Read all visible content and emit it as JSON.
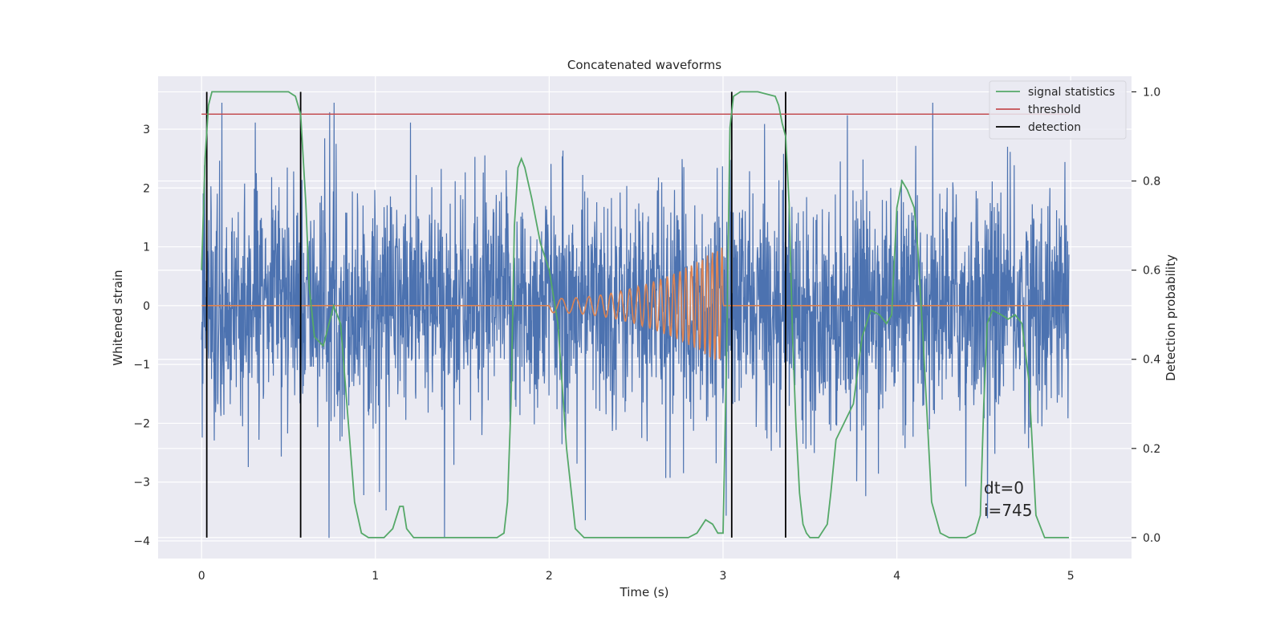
{
  "chart_data": {
    "type": "line",
    "title": "Concatenated waveforms",
    "xlabel": "Time (s)",
    "ylabel": "Whitened strain",
    "y2label": "Detection probability",
    "xlim": [
      -0.25,
      5.35
    ],
    "ylim": [
      -4.3,
      3.9
    ],
    "y2lim": [
      -0.047,
      1.035
    ],
    "x_ticks": [
      0,
      1,
      2,
      3,
      4,
      5
    ],
    "y_ticks": [
      -4,
      -3,
      -2,
      -1,
      0,
      1,
      2,
      3
    ],
    "y2_ticks": [
      0.0,
      0.2,
      0.4,
      0.6,
      0.8,
      1.0
    ],
    "x_tick_labels": [
      "0",
      "1",
      "2",
      "3",
      "4",
      "5"
    ],
    "y_tick_labels": [
      "−4",
      "−3",
      "−2",
      "−1",
      "0",
      "1",
      "2",
      "3"
    ],
    "y2_tick_labels": [
      "0.0",
      "0.2",
      "0.4",
      "0.6",
      "0.8",
      "1.0"
    ],
    "grid": true,
    "legend_position": "top-right",
    "colors": {
      "background": "#eaeaf2",
      "strain": "#4c72b0",
      "injection": "#dd8452",
      "statistics": "#55a868",
      "threshold": "#c44e52",
      "detection": "#000000"
    },
    "series": [
      {
        "name": "signal statistics",
        "axis": "right",
        "x": [
          0.0,
          0.02,
          0.04,
          0.06,
          0.1,
          0.2,
          0.3,
          0.4,
          0.5,
          0.54,
          0.57,
          0.6,
          0.62,
          0.65,
          0.7,
          0.72,
          0.76,
          0.8,
          0.84,
          0.88,
          0.92,
          0.96,
          1.0,
          1.05,
          1.1,
          1.14,
          1.16,
          1.18,
          1.22,
          1.3,
          1.5,
          1.7,
          1.74,
          1.76,
          1.78,
          1.8,
          1.82,
          1.84,
          1.86,
          1.9,
          1.95,
          2.0,
          2.05,
          2.1,
          2.15,
          2.2,
          2.4,
          2.6,
          2.8,
          2.85,
          2.9,
          2.94,
          2.97,
          3.0,
          3.02,
          3.04,
          3.06,
          3.1,
          3.2,
          3.3,
          3.32,
          3.34,
          3.36,
          3.38,
          3.4,
          3.42,
          3.44,
          3.46,
          3.48,
          3.5,
          3.55,
          3.6,
          3.62,
          3.65,
          3.7,
          3.75,
          3.8,
          3.85,
          3.9,
          3.94,
          3.97,
          4.0,
          4.03,
          4.06,
          4.1,
          4.12,
          4.15,
          4.2,
          4.25,
          4.3,
          4.4,
          4.45,
          4.48,
          4.5,
          4.52,
          4.55,
          4.6,
          4.64,
          4.68,
          4.72,
          4.76,
          4.8,
          4.85,
          4.9,
          4.99
        ],
        "y": [
          0.6,
          0.85,
          0.97,
          1.0,
          1.0,
          1.0,
          1.0,
          1.0,
          1.0,
          0.99,
          0.95,
          0.75,
          0.56,
          0.45,
          0.43,
          0.46,
          0.52,
          0.48,
          0.28,
          0.08,
          0.01,
          0.0,
          0.0,
          0.0,
          0.02,
          0.07,
          0.07,
          0.02,
          0.0,
          0.0,
          0.0,
          0.0,
          0.01,
          0.08,
          0.3,
          0.7,
          0.83,
          0.85,
          0.83,
          0.76,
          0.66,
          0.6,
          0.48,
          0.2,
          0.02,
          0.0,
          0.0,
          0.0,
          0.0,
          0.01,
          0.04,
          0.03,
          0.01,
          0.01,
          0.4,
          0.92,
          0.99,
          1.0,
          1.0,
          0.99,
          0.97,
          0.93,
          0.9,
          0.75,
          0.45,
          0.25,
          0.1,
          0.03,
          0.01,
          0.0,
          0.0,
          0.03,
          0.1,
          0.22,
          0.26,
          0.3,
          0.45,
          0.51,
          0.5,
          0.48,
          0.5,
          0.74,
          0.8,
          0.78,
          0.74,
          0.65,
          0.45,
          0.08,
          0.01,
          0.0,
          0.0,
          0.01,
          0.05,
          0.3,
          0.48,
          0.51,
          0.5,
          0.49,
          0.5,
          0.48,
          0.35,
          0.05,
          0.0,
          0.0,
          0.0
        ]
      },
      {
        "name": "threshold",
        "axis": "right",
        "x": [
          0.0,
          4.99
        ],
        "y": [
          0.95,
          0.95
        ]
      },
      {
        "name": "detection",
        "axis": "right",
        "x": [
          0.03,
          0.57,
          3.05,
          3.36
        ],
        "y_range": [
          0.0,
          1.0
        ]
      }
    ],
    "legend_entries": [
      "signal statistics",
      "threshold",
      "detection"
    ],
    "annotations": [
      "dt=0",
      "i=745"
    ]
  }
}
